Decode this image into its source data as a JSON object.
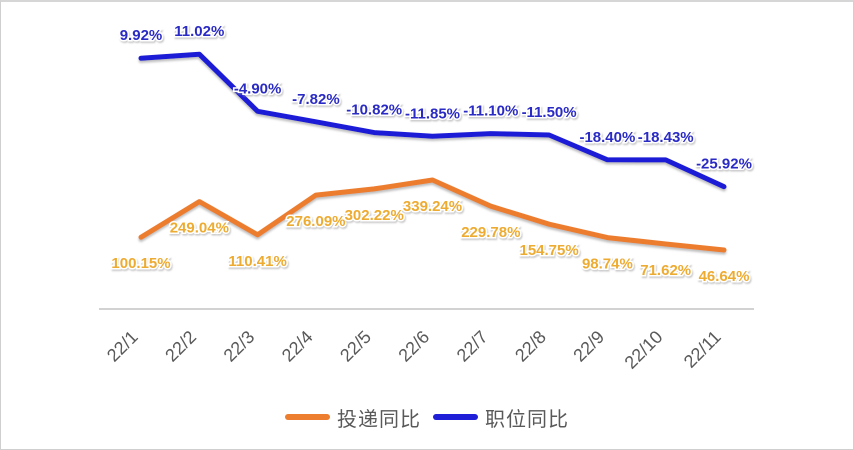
{
  "chart_data": {
    "type": "line",
    "title": "",
    "xlabel": "",
    "ylabel": "",
    "grid": "off",
    "legend_position": "bottom",
    "value_suffix": "%",
    "categories": [
      "22/1",
      "22/2",
      "22/3",
      "22/4",
      "22/5",
      "22/6",
      "22/7",
      "22/8",
      "22/9",
      "22/10",
      "22/11"
    ],
    "series": [
      {
        "name": "投递同比",
        "color": "#ED7D2F",
        "label_color": "#EDAB32",
        "label_position": "below",
        "ylim": [
          -200,
          1000
        ],
        "values": [
          100.15,
          249.04,
          110.41,
          276.09,
          302.22,
          339.24,
          229.78,
          154.75,
          98.74,
          71.62,
          46.64
        ]
      },
      {
        "name": "职位同比",
        "color": "#1F1FD7",
        "label_color": "#2C2CC4",
        "label_position": "above",
        "ylim": [
          -60,
          20
        ],
        "values": [
          9.92,
          11.02,
          -4.9,
          -7.82,
          -10.82,
          -11.85,
          -11.1,
          -11.5,
          -18.4,
          -18.43,
          -25.92
        ]
      }
    ],
    "colors": {
      "axis_line": "#D2D2D2",
      "tick_label": "#595959",
      "legend_text": "#595959",
      "background": "#FFFFFF",
      "border": "#D0D0D0"
    }
  }
}
